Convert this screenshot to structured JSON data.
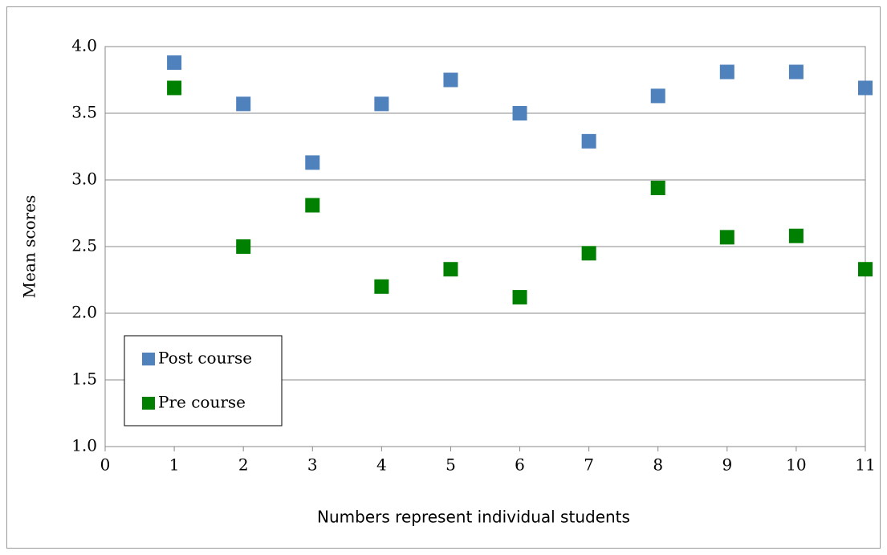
{
  "chart_data": {
    "type": "scatter",
    "xlabel": "Numbers represent individual students",
    "ylabel": "Mean scores",
    "xlim": [
      0,
      11
    ],
    "xticks": [
      0,
      1,
      2,
      3,
      4,
      5,
      6,
      7,
      8,
      9,
      10,
      11
    ],
    "ylim": [
      1,
      4
    ],
    "yticks": [
      {
        "value": 1,
        "label": "1.0"
      },
      1.5,
      {
        "value": 2,
        "label": "2.0"
      },
      2.5,
      {
        "value": 3,
        "label": "3.0"
      },
      3.5,
      {
        "value": 4,
        "label": "4.0"
      }
    ],
    "grid": true,
    "legend": "lower left",
    "series": [
      {
        "name": "Post course",
        "color": "#4f81bd",
        "x": [
          1,
          2,
          3,
          4,
          5,
          6,
          7,
          8,
          9,
          10,
          11
        ],
        "values": [
          3.88,
          3.57,
          3.13,
          3.57,
          3.75,
          3.5,
          3.29,
          3.63,
          3.81,
          3.81,
          3.69
        ]
      },
      {
        "name": "Pre course",
        "color": "#008000",
        "x": [
          1,
          2,
          3,
          4,
          5,
          6,
          7,
          8,
          9,
          10,
          11
        ],
        "values": [
          3.69,
          2.5,
          2.81,
          2.2,
          2.33,
          2.12,
          2.45,
          2.94,
          2.57,
          2.58,
          2.33
        ]
      }
    ]
  }
}
